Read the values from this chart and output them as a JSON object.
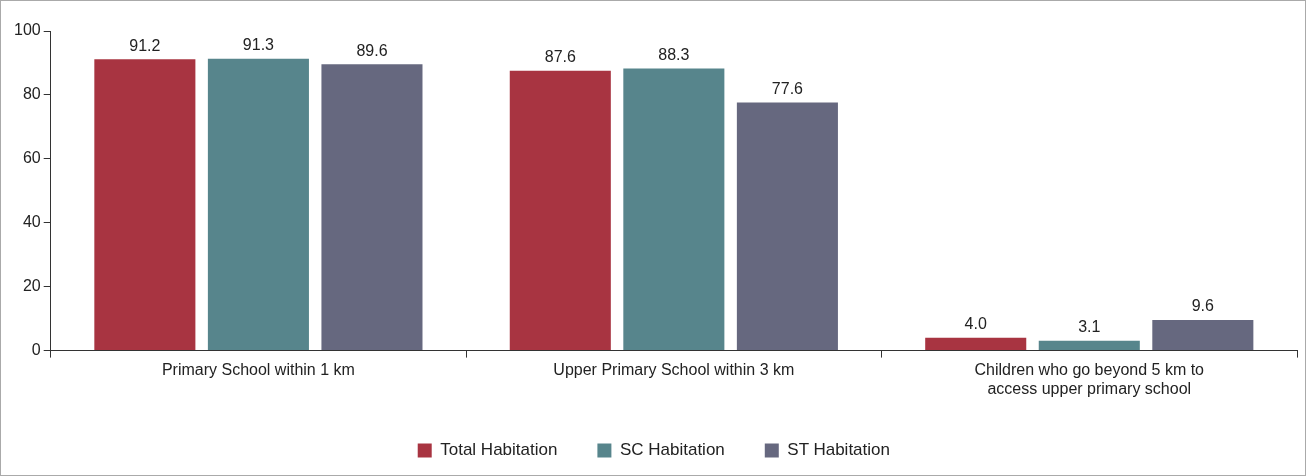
{
  "chart_data": {
    "type": "bar",
    "categories": [
      "Primary School within 1 km",
      "Upper Primary School within 3 km",
      "Children who go beyond 5 km to access upper primary school"
    ],
    "series": [
      {
        "name": "Total Habitation",
        "color": "#a83441",
        "values": [
          91.2,
          87.6,
          4.0
        ],
        "value_labels": [
          "91.2",
          "87.6",
          "4.0"
        ]
      },
      {
        "name": "SC Habitation",
        "color": "#57858c",
        "values": [
          91.3,
          88.3,
          3.1
        ],
        "value_labels": [
          "91.3",
          "88.3",
          "3.1"
        ]
      },
      {
        "name": "ST Habitation",
        "color": "#66687f",
        "values": [
          89.6,
          77.6,
          9.6
        ],
        "value_labels": [
          "89.6",
          "77.6",
          "9.6"
        ]
      }
    ],
    "ylim": [
      0,
      100
    ],
    "yticks": [
      0,
      20,
      40,
      60,
      80,
      100
    ],
    "grid": false,
    "legend": "bottom"
  }
}
